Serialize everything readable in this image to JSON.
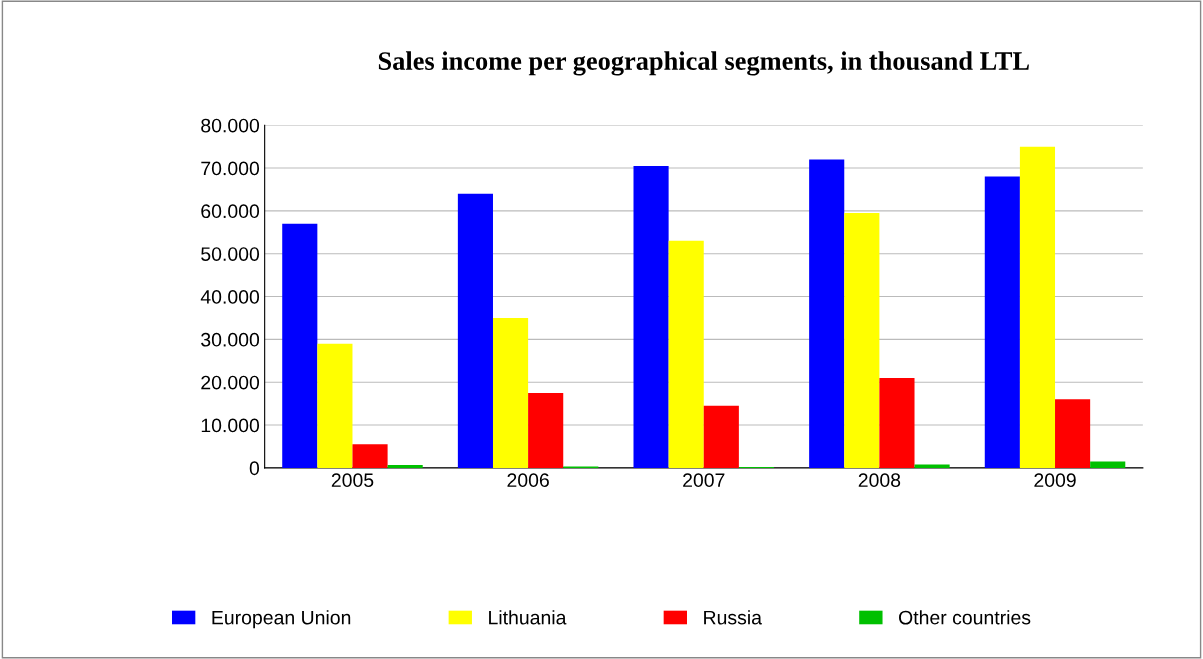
{
  "chart_data": {
    "type": "bar",
    "title": "Sales income per geographical segments, in thousand LTL",
    "categories": [
      "2005",
      "2006",
      "2007",
      "2008",
      "2009"
    ],
    "series": [
      {
        "name": "European Union",
        "color": "#0000ff",
        "values": [
          57000,
          64000,
          70500,
          72000,
          68000
        ]
      },
      {
        "name": "Lithuania",
        "color": "#ffff00",
        "values": [
          29000,
          35000,
          53000,
          59500,
          75000
        ]
      },
      {
        "name": "Russia",
        "color": "#ff0000",
        "values": [
          5500,
          17500,
          14500,
          21000,
          16000
        ]
      },
      {
        "name": "Other countries",
        "color": "#00c000",
        "values": [
          700,
          300,
          200,
          800,
          1500
        ]
      }
    ],
    "ylim": [
      0,
      80000
    ],
    "yticks": [
      {
        "value": 0,
        "label": "0"
      },
      {
        "value": 10000,
        "label": "10.000"
      },
      {
        "value": 20000,
        "label": "20.000"
      },
      {
        "value": 30000,
        "label": "30.000"
      },
      {
        "value": 40000,
        "label": "40.000"
      },
      {
        "value": 50000,
        "label": "50.000"
      },
      {
        "value": 60000,
        "label": "60.000"
      },
      {
        "value": 70000,
        "label": "70.000"
      },
      {
        "value": 80000,
        "label": "80.000"
      }
    ],
    "grid": "y",
    "legend": "bottom"
  }
}
